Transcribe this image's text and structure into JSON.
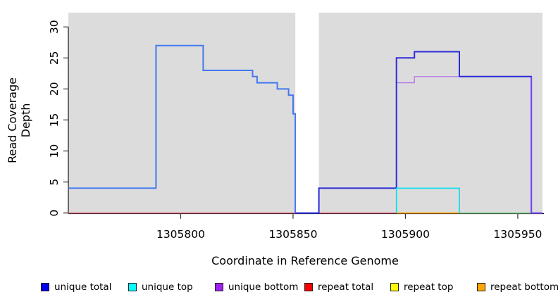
{
  "chart_data": {
    "type": "line",
    "subtype": "step-coverage",
    "title": "",
    "xlabel": "Coordinate in Reference Genome",
    "ylabel": "Read Coverage Depth",
    "xlim": [
      1305750,
      1305961
    ],
    "ylim": [
      0,
      32.3
    ],
    "x_ticks": [
      1305800,
      1305850,
      1305900,
      1305950
    ],
    "x_tick_labels": [
      "1305800",
      "1305850",
      "1305900",
      "1305950"
    ],
    "y_ticks": [
      0,
      5,
      10,
      15,
      20,
      25,
      30
    ],
    "y_tick_labels": [
      "0",
      "5",
      "10",
      "15",
      "20",
      "25",
      "30"
    ],
    "grid": false,
    "plot_background_color": "#DCDCDC",
    "background_regions": [
      {
        "x0": 1305750,
        "x1": 1305851
      },
      {
        "x0": 1305861.5,
        "x1": 1305961
      }
    ],
    "gap_region": {
      "x0": 1305851,
      "x1": 1305861.5
    },
    "series": [
      {
        "name": "repeat-total-zero-line",
        "color": "#E8697A",
        "width": 1.4,
        "vertices": [
          [
            1305750,
            0
          ],
          [
            1305896,
            0
          ]
        ]
      },
      {
        "name": "repeat-bottom-zero-line",
        "color": "#FFA500",
        "width": 1.6,
        "vertices": [
          [
            1305896,
            0
          ],
          [
            1305924,
            0
          ]
        ]
      },
      {
        "name": "zero-line-green",
        "color": "#86CB90",
        "width": 1.6,
        "vertices": [
          [
            1305924,
            0
          ],
          [
            1305956,
            0
          ]
        ]
      },
      {
        "name": "unique-bottom",
        "color": "#B678E8",
        "width": 1.4,
        "vertices": [
          [
            1305896,
            0
          ],
          [
            1305896,
            21
          ],
          [
            1305904,
            21
          ],
          [
            1305904,
            22
          ],
          [
            1305956,
            22
          ]
        ]
      },
      {
        "name": "unique-total-right",
        "color": "#2B2BD8",
        "width": 2,
        "vertices": [
          [
            1305851,
            0
          ],
          [
            1305861.5,
            0
          ],
          [
            1305861.5,
            4
          ],
          [
            1305896,
            4
          ],
          [
            1305896,
            25
          ],
          [
            1305904,
            25
          ],
          [
            1305904,
            26
          ],
          [
            1305924,
            26
          ],
          [
            1305924,
            22
          ],
          [
            1305956,
            22
          ],
          [
            1305956,
            0
          ]
        ]
      },
      {
        "name": "unique-bottom-right-edge",
        "color": "#7348EE",
        "width": 2,
        "vertices": [
          [
            1305956,
            22
          ],
          [
            1305956,
            0
          ],
          [
            1305961,
            0
          ]
        ]
      },
      {
        "name": "unique-top",
        "color": "#00E0EE",
        "width": 1.6,
        "vertices": [
          [
            1305896,
            0
          ],
          [
            1305896,
            4
          ],
          [
            1305924,
            4
          ],
          [
            1305924,
            0
          ]
        ]
      },
      {
        "name": "unique-total-left",
        "color": "#4478F0",
        "width": 2,
        "vertices": [
          [
            1305750,
            4
          ],
          [
            1305789,
            4
          ],
          [
            1305789,
            27
          ],
          [
            1305810,
            27
          ],
          [
            1305810,
            23
          ],
          [
            1305832,
            23
          ],
          [
            1305832,
            22
          ],
          [
            1305834,
            22
          ],
          [
            1305834,
            21
          ],
          [
            1305843,
            21
          ],
          [
            1305843,
            20
          ],
          [
            1305848,
            20
          ],
          [
            1305848,
            19
          ],
          [
            1305850,
            19
          ],
          [
            1305850,
            16
          ],
          [
            1305851,
            16
          ],
          [
            1305851,
            0
          ]
        ]
      }
    ],
    "legend_position": "bottom",
    "legend": [
      {
        "label": "unique total",
        "color": "#0000EE"
      },
      {
        "label": "unique top",
        "color": "#00FFFF"
      },
      {
        "label": "unique bottom",
        "color": "#A020F0"
      },
      {
        "label": "repeat total",
        "color": "#FF0000"
      },
      {
        "label": "repeat top",
        "color": "#FFFF00"
      },
      {
        "label": "repeat bottom",
        "color": "#FFA500"
      }
    ]
  }
}
